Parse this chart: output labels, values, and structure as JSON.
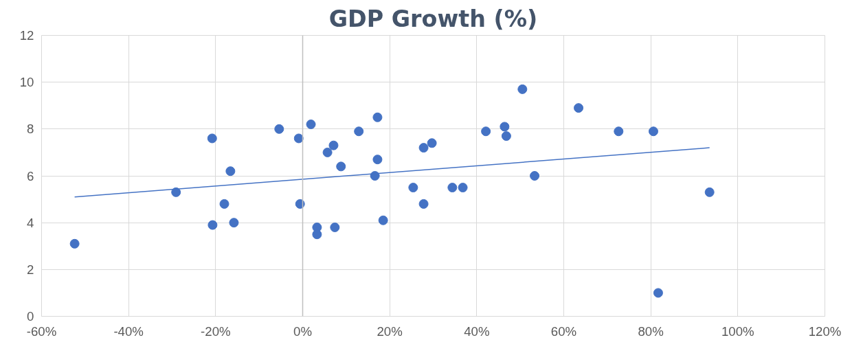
{
  "chart_data": {
    "type": "scatter",
    "title": "GDP Growth (%)",
    "xlim": [
      -60,
      120
    ],
    "xticks": [
      {
        "value": -60,
        "label": "-60%"
      },
      {
        "value": -40,
        "label": "-40%"
      },
      {
        "value": -20,
        "label": "-20%"
      },
      {
        "value": 0,
        "label": "0%"
      },
      {
        "value": 20,
        "label": "20%"
      },
      {
        "value": 40,
        "label": "40%"
      },
      {
        "value": 60,
        "label": "60%"
      },
      {
        "value": 80,
        "label": "80%"
      },
      {
        "value": 100,
        "label": "100%"
      },
      {
        "value": 120,
        "label": "120%"
      }
    ],
    "ylim": [
      0,
      12
    ],
    "yticks": [
      0,
      2,
      4,
      6,
      8,
      10,
      12
    ],
    "grid": true,
    "marker": "circle",
    "series": [
      {
        "color": "#4472c4",
        "x": [
          -52.4,
          -29.1,
          -20.8,
          -18.0,
          -20.7,
          -16.6,
          -15.8,
          -5.4,
          -0.9,
          -0.6,
          1.9,
          3.3,
          3.3,
          5.7,
          7.1,
          7.4,
          8.8,
          12.9,
          16.6,
          17.2,
          17.2,
          18.5,
          25.4,
          27.8,
          27.8,
          29.7,
          34.4,
          36.8,
          42.1,
          46.4,
          46.8,
          50.5,
          53.3,
          63.4,
          72.6,
          80.6,
          81.7,
          93.5
        ],
        "values": [
          3.1,
          5.3,
          7.6,
          4.8,
          3.9,
          6.2,
          4.0,
          8.0,
          7.6,
          4.8,
          8.2,
          3.8,
          3.5,
          7.0,
          7.3,
          3.8,
          6.4,
          7.9,
          6.0,
          8.5,
          6.7,
          4.1,
          5.5,
          7.2,
          4.8,
          7.4,
          5.5,
          5.5,
          7.9,
          8.1,
          7.7,
          9.7,
          6.0,
          8.9,
          7.9,
          7.9,
          1.0,
          5.3
        ]
      },
      {
        "type": "line",
        "marker": "none",
        "color": "#4472c4",
        "x": [
          -52.4,
          93.5
        ],
        "values": [
          5.1,
          7.2
        ]
      }
    ]
  }
}
